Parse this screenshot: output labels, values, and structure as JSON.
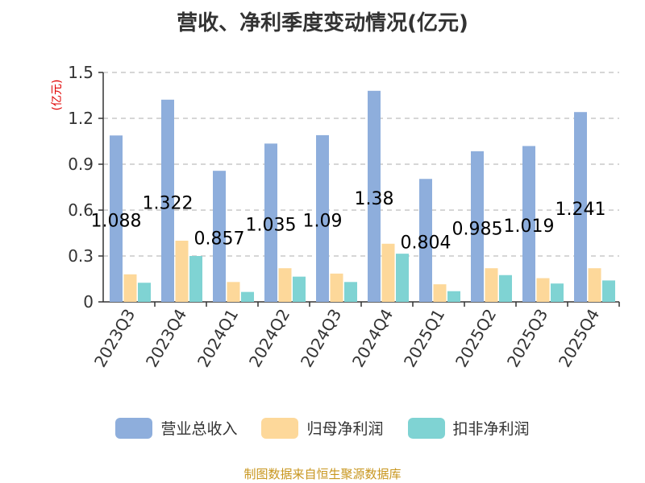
{
  "chart_data": {
    "type": "bar",
    "title": "营收、净利季度变动情况(亿元)",
    "ylabel": "(亿元)",
    "xlabel": "",
    "ylim": [
      0,
      1.5
    ],
    "yticks": [
      "0",
      "0.3",
      "0.6",
      "0.9",
      "1.2",
      "1.5"
    ],
    "categories": [
      "2023Q3",
      "2023Q4",
      "2024Q1",
      "2024Q2",
      "2024Q3",
      "2024Q4",
      "2025Q1",
      "2025Q2",
      "2025Q3",
      "2025Q4"
    ],
    "series": [
      {
        "name": "营业总收入",
        "color": "#8eaedc",
        "values": [
          1.088,
          1.322,
          0.857,
          1.035,
          1.09,
          1.38,
          0.804,
          0.985,
          1.019,
          1.241
        ],
        "labels": [
          "1.088",
          "1.322",
          "0.857",
          "1.035",
          "1.09",
          "1.38",
          "0.804",
          "0.985",
          "1.019",
          "1.241"
        ]
      },
      {
        "name": "归母净利润",
        "color": "#fdd89a",
        "values": [
          0.18,
          0.4,
          0.13,
          0.22,
          0.185,
          0.38,
          0.115,
          0.22,
          0.155,
          0.22
        ]
      },
      {
        "name": "扣非净利润",
        "color": "#7fd3d3",
        "values": [
          0.125,
          0.3,
          0.065,
          0.165,
          0.13,
          0.315,
          0.07,
          0.175,
          0.12,
          0.14
        ]
      }
    ],
    "grid": true,
    "legend_position": "bottom"
  },
  "source": "制图数据来自恒生聚源数据库"
}
